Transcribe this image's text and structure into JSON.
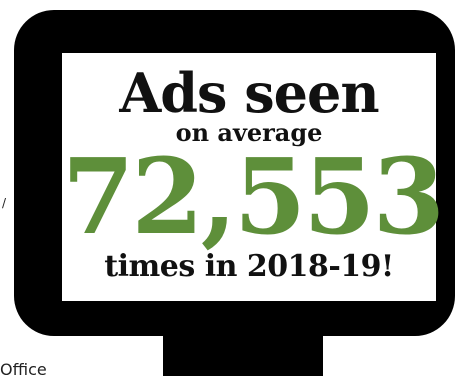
{
  "stray_text": {
    "left_fragment": "/",
    "bottom_fragment": "Office"
  },
  "monitor_card": {
    "headline": "Ads seen",
    "subline": "on average",
    "number": "72,553",
    "footer": "times in 2018-19!",
    "colors": {
      "frame": "#000000",
      "screen": "#ffffff",
      "number": "#5e8f3a",
      "text": "#111111"
    }
  }
}
